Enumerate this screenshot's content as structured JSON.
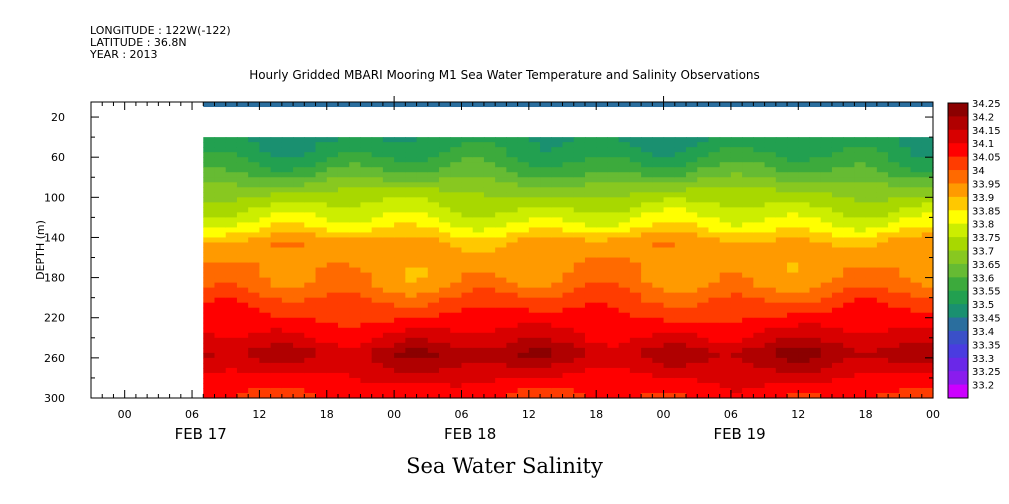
{
  "header": {
    "longitude": "LONGITUDE : 122W(-122)",
    "latitude": "LATITUDE : 36.8N",
    "year": "YEAR : 2013"
  },
  "chart_data": {
    "type": "heatmap",
    "title": "Hourly Gridded MBARI Mooring M1 Sea Water Temperature and Salinity Observations",
    "footer": "Sea Water Salinity",
    "ylabel": "DEPTH (m)",
    "y_ticks": [
      20,
      60,
      100,
      140,
      180,
      220,
      260,
      300
    ],
    "ylim": [
      300,
      5
    ],
    "x_tick_labels": [
      "00",
      "06",
      "12",
      "18",
      "00",
      "06",
      "12",
      "18",
      "00",
      "06",
      "12",
      "18",
      "00"
    ],
    "x_tick_hours": [
      0,
      6,
      12,
      18,
      24,
      30,
      36,
      42,
      48,
      54,
      60,
      66,
      72
    ],
    "x_day_labels": [
      "FEB 17",
      "FEB 18",
      "FEB 19"
    ],
    "xlim_hours": [
      -3,
      72
    ],
    "data_start_hour": 7,
    "colorbar": {
      "levels": [
        "34.25",
        "34.2",
        "34.15",
        "34.1",
        "34.05",
        "34",
        "33.95",
        "33.9",
        "33.85",
        "33.8",
        "33.75",
        "33.7",
        "33.65",
        "33.6",
        "33.55",
        "33.5",
        "33.45",
        "33.4",
        "33.35",
        "33.3",
        "33.25",
        "33.2"
      ],
      "colors": [
        "#8b0000",
        "#b00000",
        "#d80000",
        "#ff0000",
        "#ff3c00",
        "#ff6a00",
        "#ff9a00",
        "#ffc800",
        "#ffff00",
        "#ccee00",
        "#a8d800",
        "#88c820",
        "#66bb33",
        "#3caa3c",
        "#22a050",
        "#1a9070",
        "#2a6e9e",
        "#3a50c8",
        "#4a3ce0",
        "#6a28e8",
        "#8a1cee",
        "#cc00ff"
      ]
    },
    "profile_depth_levels": [
      {
        "depth": 40,
        "salinity": 33.55
      },
      {
        "depth": 55,
        "salinity": 33.58
      },
      {
        "depth": 75,
        "salinity": 33.65
      },
      {
        "depth": 95,
        "salinity": 33.75
      },
      {
        "depth": 115,
        "salinity": 33.82
      },
      {
        "depth": 130,
        "salinity": 33.88
      },
      {
        "depth": 145,
        "salinity": 33.97
      },
      {
        "depth": 165,
        "salinity": 33.98
      },
      {
        "depth": 185,
        "salinity": 34.0
      },
      {
        "depth": 205,
        "salinity": 34.07
      },
      {
        "depth": 225,
        "salinity": 34.12
      },
      {
        "depth": 245,
        "salinity": 34.18
      },
      {
        "depth": 255,
        "salinity": 34.23
      },
      {
        "depth": 265,
        "salinity": 34.2
      },
      {
        "depth": 280,
        "salinity": 34.15
      },
      {
        "depth": 300,
        "salinity": 34.1
      }
    ],
    "surface_band": {
      "depth_range": [
        5,
        10
      ],
      "salinity": 33.45
    },
    "missing_depth_range": [
      10,
      40
    ]
  }
}
